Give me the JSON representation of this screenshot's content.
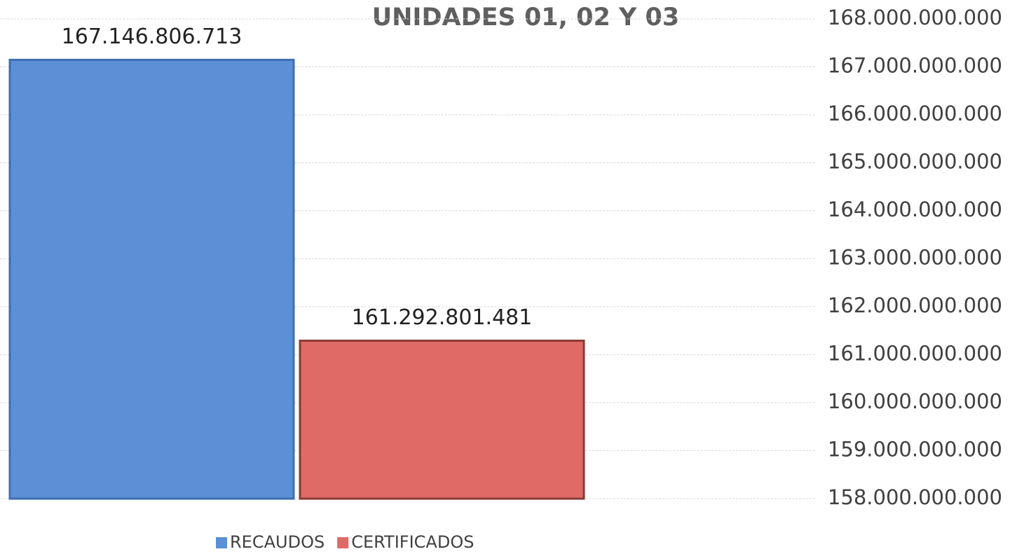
{
  "chart_data": {
    "type": "bar",
    "title": "UNIDADES 01, 02 Y 03",
    "categories": [
      null
    ],
    "series": [
      {
        "name": "RECAUDOS",
        "color": "#5b8fd6",
        "values": [
          167146806713
        ],
        "value_labels": [
          "167.146.806.713"
        ]
      },
      {
        "name": "CERTIFICADOS",
        "color": "#e06a66",
        "values": [
          161292801481
        ],
        "value_labels": [
          "161.292.801.481"
        ]
      }
    ],
    "ylim": [
      158000000000,
      168000000000
    ],
    "yticks": [
      {
        "value": 158000000000,
        "label": "158.000.000.000"
      },
      {
        "value": 159000000000,
        "label": "159.000.000.000"
      },
      {
        "value": 160000000000,
        "label": "160.000.000.000"
      },
      {
        "value": 161000000000,
        "label": "161.000.000.000"
      },
      {
        "value": 162000000000,
        "label": "162.000.000.000"
      },
      {
        "value": 163000000000,
        "label": "163.000.000.000"
      },
      {
        "value": 164000000000,
        "label": "164.000.000.000"
      },
      {
        "value": 165000000000,
        "label": "165.000.000.000"
      },
      {
        "value": 166000000000,
        "label": "166.000.000.000"
      },
      {
        "value": 167000000000,
        "label": "167.000.000.000"
      },
      {
        "value": 168000000000,
        "label": "168.000.000.000"
      }
    ],
    "y_axis_side": "right",
    "grid": true,
    "legend": "bottom"
  }
}
